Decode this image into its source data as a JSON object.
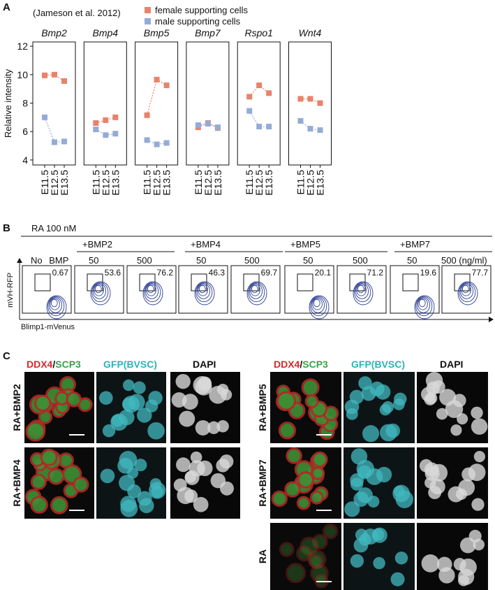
{
  "chart_data": {
    "type": "line",
    "title": "(Jameson et al. 2012)",
    "y_label": "Relative intensity",
    "categories": [
      "E11.5",
      "E12.5",
      "E13.5"
    ],
    "series": [
      {
        "name": "female supporting cells",
        "color": "#e8826b"
      },
      {
        "name": "male supporting cells",
        "color": "#94abd6"
      }
    ],
    "ylim": [
      3.65,
      12.3
    ],
    "yticks": [
      4,
      6,
      8,
      10,
      12
    ],
    "panels": [
      {
        "title": "Bmp2",
        "values": [
          [
            9.95,
            10.0,
            9.55
          ],
          [
            7.0,
            5.25,
            5.3
          ]
        ]
      },
      {
        "title": "Bmp4",
        "values": [
          [
            6.6,
            6.8,
            7.0
          ],
          [
            6.15,
            5.75,
            5.85
          ]
        ]
      },
      {
        "title": "Bmp5",
        "values": [
          [
            7.15,
            9.65,
            9.25
          ],
          [
            5.4,
            5.1,
            5.2
          ]
        ]
      },
      {
        "title": "Bmp7",
        "values": [
          [
            6.3,
            6.6,
            6.25
          ],
          [
            6.45,
            6.55,
            6.3
          ]
        ]
      },
      {
        "title": "Rspo1",
        "values": [
          [
            8.45,
            9.25,
            8.7
          ],
          [
            7.45,
            6.35,
            6.35
          ]
        ]
      },
      {
        "title": "Wnt4",
        "values": [
          [
            8.3,
            8.3,
            8.0
          ],
          [
            6.75,
            6.2,
            6.1
          ]
        ]
      }
    ]
  },
  "panel_labels": [
    "A",
    "B",
    "C"
  ],
  "flow": {
    "title": "RA 100 nM",
    "control": "No BMP",
    "groups": [
      "+BMP2",
      "+BMP4",
      "+BMP5",
      "+BMP7"
    ],
    "doses": [
      "50",
      "500",
      "50",
      "500",
      "50",
      "500",
      "50",
      "500 (ng/ml)"
    ],
    "percentages": [
      0.67,
      53.6,
      76.2,
      46.3,
      69.7,
      20.1,
      71.2,
      19.6,
      77.7
    ],
    "y_label": "mVH-RFP",
    "x_label": "Blimp1-mVenus"
  },
  "imaging": {
    "header": {
      "ddx4": "DDX4",
      "slash": "/",
      "scp3": "SCP3",
      "gfp": "GFP(BVSC)",
      "dapi": "DAPI"
    },
    "rows": [
      "RA+BMP2",
      "RA+BMP4",
      "RA+BMP5",
      "RA+BMP7",
      "RA"
    ]
  }
}
